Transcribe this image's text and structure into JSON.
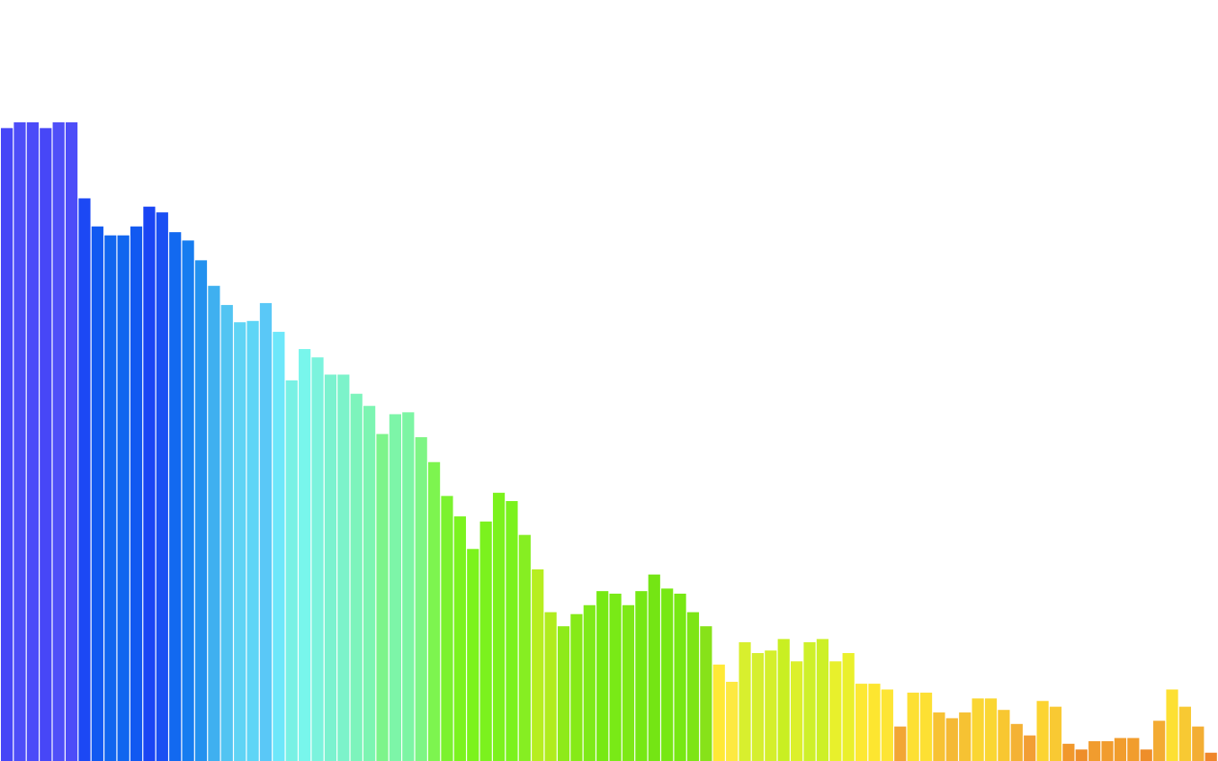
{
  "chart_data": {
    "type": "bar",
    "title": "",
    "xlabel": "",
    "ylabel": "",
    "ylim": [
      0,
      100
    ],
    "grid": false,
    "legend": "none",
    "values": [
      99.1,
      100,
      100,
      99.1,
      100,
      100,
      88.1,
      83.7,
      82.3,
      82.3,
      83.7,
      86.8,
      85.9,
      82.8,
      81.5,
      78.4,
      74.4,
      71.4,
      68.7,
      68.9,
      71.7,
      67.2,
      59.6,
      64.5,
      63.2,
      60.5,
      60.5,
      57.5,
      55.6,
      51.2,
      54.3,
      54.6,
      50.7,
      46.8,
      41.5,
      38.3,
      33.2,
      37.5,
      42.0,
      40.7,
      35.4,
      30.0,
      23.3,
      21.1,
      23.0,
      24.4,
      26.6,
      26.2,
      24.4,
      26.6,
      29.2,
      27.0,
      26.2,
      23.3,
      21.1,
      15.1,
      12.4,
      18.6,
      16.9,
      17.3,
      19.1,
      15.6,
      18.6,
      19.1,
      15.6,
      16.9,
      12.1,
      12.1,
      11.2,
      5.4,
      10.7,
      10.7,
      7.6,
      6.7,
      7.6,
      9.8,
      9.8,
      8.0,
      5.8,
      4.0,
      9.4,
      8.5,
      2.7,
      1.8,
      3.1,
      3.1,
      3.6,
      3.6,
      1.8,
      6.3,
      11.2,
      8.5,
      5.4,
      1.3
    ],
    "colors": [
      "#4646f7",
      "#4d4df8",
      "#4b4bf8",
      "#4747f7",
      "#4f4ff8",
      "#4d4df8",
      "#1c48f4",
      "#1159f1",
      "#1166ef",
      "#1166ef",
      "#1159f1",
      "#1a45f4",
      "#1a4ff3",
      "#1269f0",
      "#167cf0",
      "#2391ef",
      "#3fb0f0",
      "#52c4f2",
      "#5fd4f5",
      "#5ed5f6",
      "#5ac8f7",
      "#6de7fa",
      "#78f1e4",
      "#78f6ec",
      "#7bf3dd",
      "#7bf2cf",
      "#7cf3ca",
      "#7df4bc",
      "#7cf5b2",
      "#7df48b",
      "#7df5a8",
      "#7df5a4",
      "#7ef585",
      "#7df54f",
      "#7bf22f",
      "#7bf31f",
      "#7cf31c",
      "#7bf21e",
      "#7cf21d",
      "#7bf21e",
      "#86ee22",
      "#b6ee20",
      "#b0ec1e",
      "#8eea19",
      "#86ea18",
      "#7eea19",
      "#77e914",
      "#79ea16",
      "#7de917",
      "#77e815",
      "#74e514",
      "#77e813",
      "#77e813",
      "#7de515",
      "#87e219",
      "#ffe936",
      "#fde941",
      "#d8ef2e",
      "#d5ef2f",
      "#d4ef2c",
      "#c9ef22",
      "#dcf02b",
      "#cef02a",
      "#cdf027",
      "#e8f02c",
      "#eaf02c",
      "#fde833",
      "#fde630",
      "#fde535",
      "#f2a534",
      "#fde033",
      "#fde033",
      "#f7c233",
      "#f5b934",
      "#f6c233",
      "#fad633",
      "#fad633",
      "#f8c731",
      "#f4b234",
      "#f29e34",
      "#fcd431",
      "#f9c933",
      "#f1982c",
      "#ee8e2a",
      "#f19c2e",
      "#f19c2e",
      "#f19d2d",
      "#f19d2d",
      "#ee8e2a",
      "#f3ab33",
      "#fde033",
      "#f8c933",
      "#f3ae34",
      "#ef862a"
    ]
  }
}
